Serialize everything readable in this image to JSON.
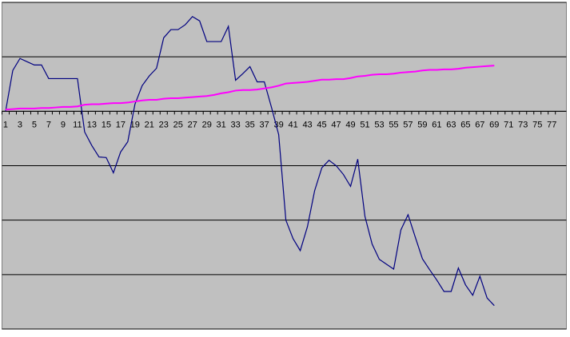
{
  "chart_data": {
    "type": "line",
    "categories": [
      1,
      null,
      3,
      null,
      5,
      null,
      7,
      null,
      9,
      null,
      11,
      null,
      13,
      null,
      15,
      null,
      17,
      null,
      19,
      null,
      21,
      null,
      23,
      null,
      25,
      null,
      27,
      null,
      29,
      null,
      31,
      null,
      33,
      null,
      35,
      null,
      37,
      null,
      39,
      null,
      41,
      null,
      43,
      null,
      45,
      null,
      47,
      null,
      49,
      null,
      51,
      null,
      53,
      null,
      55,
      null,
      57,
      null,
      59,
      null,
      61,
      null,
      63,
      null,
      65,
      null,
      67,
      null,
      69,
      null,
      71,
      null,
      73,
      null,
      75,
      null,
      77,
      null
    ],
    "series": [
      {
        "color": "#000080",
        "values": [
          0,
          0.75,
          0.97,
          0.91,
          0.85,
          0.85,
          0.6,
          0.6,
          0.6,
          0.6,
          0.6,
          -0.38,
          -0.63,
          -0.84,
          -0.85,
          -1.13,
          -0.75,
          -0.56,
          0.13,
          0.47,
          0.65,
          0.79,
          1.35,
          1.5,
          1.5,
          1.59,
          1.74,
          1.66,
          1.28,
          1.28,
          1.28,
          1.56,
          0.57,
          0.69,
          0.82,
          0.54,
          0.54,
          0.07,
          -0.43,
          -2.0,
          -2.34,
          -2.56,
          -2.12,
          -1.46,
          -1.04,
          -0.9,
          -1.0,
          -1.16,
          -1.38,
          -0.88,
          -1.93,
          -2.44,
          -2.72,
          -2.81,
          -2.9,
          -2.18,
          -1.9,
          -2.31,
          -2.71,
          -2.91,
          -3.1,
          -3.31,
          -3.31,
          -2.88,
          -3.19,
          -3.38,
          -3.03,
          -3.43,
          -3.57,
          null,
          null,
          null,
          null,
          null,
          null,
          null,
          null,
          null
        ]
      },
      {
        "color": "#ff00ff",
        "values": [
          0.03,
          0.04,
          0.05,
          0.05,
          0.05,
          0.06,
          0.06,
          0.07,
          0.08,
          0.08,
          0.09,
          0.12,
          0.13,
          0.13,
          0.14,
          0.15,
          0.15,
          0.16,
          0.18,
          0.2,
          0.21,
          0.21,
          0.23,
          0.24,
          0.24,
          0.25,
          0.26,
          0.27,
          0.28,
          0.3,
          0.33,
          0.35,
          0.38,
          0.39,
          0.39,
          0.4,
          0.42,
          0.44,
          0.47,
          0.51,
          0.52,
          0.53,
          0.54,
          0.56,
          0.58,
          0.58,
          0.59,
          0.59,
          0.61,
          0.64,
          0.65,
          0.67,
          0.68,
          0.68,
          0.69,
          0.71,
          0.72,
          0.73,
          0.75,
          0.76,
          0.76,
          0.77,
          0.77,
          0.78,
          0.8,
          0.81,
          0.82,
          0.83,
          0.84,
          null,
          null,
          null,
          null,
          null,
          null,
          null,
          null,
          null
        ]
      }
    ],
    "ylim": [
      -4,
      2
    ],
    "yticks": [
      -4,
      -3,
      -2,
      -1,
      0,
      1,
      2
    ],
    "grid": true
  }
}
